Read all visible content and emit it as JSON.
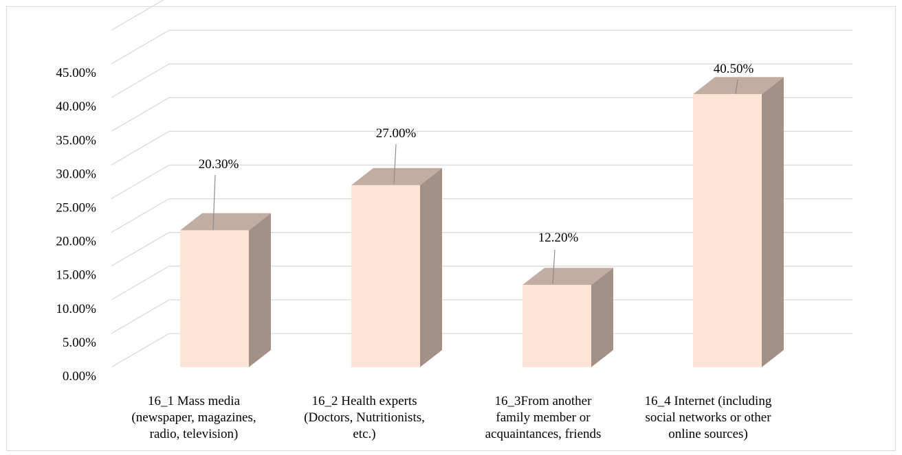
{
  "chart_data": {
    "type": "bar",
    "style": "3d-column",
    "title": "",
    "xlabel": "",
    "ylabel": "",
    "categories": [
      [
        "16_1 Mass media",
        "(newspaper, magazines,",
        "radio, television)"
      ],
      [
        "16_2 Health experts",
        "(Doctors, Nutritionists,",
        "etc.)"
      ],
      [
        "16_3From another",
        "family member or",
        "acquaintances, friends"
      ],
      [
        "16_4 Internet (including",
        "social networks or other",
        "online sources)"
      ]
    ],
    "values": [
      20.3,
      27.0,
      12.2,
      40.5
    ],
    "data_labels": [
      "20.30%",
      "27.00%",
      "12.20%",
      "40.50%"
    ],
    "ylim": [
      0,
      45
    ],
    "yticks": [
      0,
      5,
      10,
      15,
      20,
      25,
      30,
      35,
      40,
      45
    ],
    "ytick_labels": [
      "0.00%",
      "5.00%",
      "10.00%",
      "15.00%",
      "20.00%",
      "25.00%",
      "30.00%",
      "35.00%",
      "40.00%",
      "45.00%"
    ],
    "grid": true,
    "legend": "none",
    "colors": {
      "bar_front": "#fde4d6",
      "bar_top": "#c2ada3",
      "bar_side": "#a39086",
      "grid": "#d9d9d9",
      "leader": "#8c8c8c"
    }
  }
}
